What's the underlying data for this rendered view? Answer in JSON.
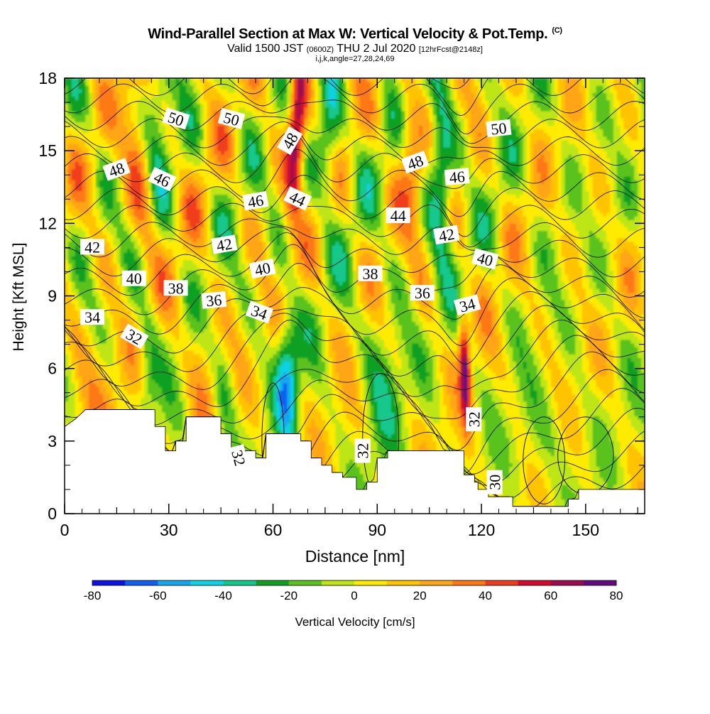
{
  "title": "Wind-Parallel Section at Max W: Vertical Velocity & Pot.Temp.",
  "title_mark": "(C)",
  "subtitle": {
    "prefix": "Valid 1500 JST",
    "small1": "(0600Z)",
    "middle": "THU 2 Jul 2020",
    "small2": "[12hrFcst@2148z]"
  },
  "subtitle2": "i,j,k,angle=27,28,24,69",
  "chart_data": {
    "type": "heatmap",
    "xlabel": "Distance [nm]",
    "ylabel": "Height [Kft MSL]",
    "xlim": [
      0,
      167
    ],
    "ylim": [
      0,
      18
    ],
    "x_ticks": [
      "0",
      "30",
      "60",
      "90",
      "120",
      "150"
    ],
    "y_ticks": [
      "0",
      "3",
      "6",
      "9",
      "12",
      "15",
      "18"
    ],
    "colorbar": {
      "label": "Vertical Velocity [cm/s]",
      "tick_labels": [
        "-80",
        "-60",
        "-40",
        "-20",
        "0",
        "20",
        "40",
        "60",
        "80"
      ],
      "range": [
        -80,
        80
      ],
      "step": 10,
      "colors": [
        "#1010e6",
        "#1060f0",
        "#14a6f0",
        "#10d2e6",
        "#14c88c",
        "#10a020",
        "#5ac21e",
        "#bee614",
        "#ffeb00",
        "#ffc300",
        "#ffa519",
        "#ff7814",
        "#f03c1e",
        "#d20a2d",
        "#a00a50",
        "#640a82"
      ]
    },
    "terrain_kft": [
      [
        0,
        3.6
      ],
      [
        3,
        3.9
      ],
      [
        6,
        4.3
      ],
      [
        26,
        4.3
      ],
      [
        26,
        3.6
      ],
      [
        29,
        3.6
      ],
      [
        29,
        2.6
      ],
      [
        32,
        2.6
      ],
      [
        32,
        3.0
      ],
      [
        35,
        3.0
      ],
      [
        35,
        4.0
      ],
      [
        45,
        4.0
      ],
      [
        45,
        3.3
      ],
      [
        48,
        3.3
      ],
      [
        48,
        2.3
      ],
      [
        52,
        2.3
      ],
      [
        52,
        2.6
      ],
      [
        55,
        2.6
      ],
      [
        55,
        2.3
      ],
      [
        58,
        2.3
      ],
      [
        58,
        3.3
      ],
      [
        68,
        3.3
      ],
      [
        68,
        3.0
      ],
      [
        71,
        3.0
      ],
      [
        71,
        2.3
      ],
      [
        74,
        2.3
      ],
      [
        74,
        2.0
      ],
      [
        77,
        2.0
      ],
      [
        77,
        1.7
      ],
      [
        80,
        1.7
      ],
      [
        80,
        1.5
      ],
      [
        84,
        1.5
      ],
      [
        84,
        1.0
      ],
      [
        87,
        1.0
      ],
      [
        87,
        1.3
      ],
      [
        90,
        1.3
      ],
      [
        90,
        2.3
      ],
      [
        93,
        2.3
      ],
      [
        93,
        2.6
      ],
      [
        115,
        2.6
      ],
      [
        115,
        1.6
      ],
      [
        118,
        1.6
      ],
      [
        118,
        1.3
      ],
      [
        119,
        1.3
      ],
      [
        119,
        1.0
      ],
      [
        122,
        1.0
      ],
      [
        122,
        0.7
      ],
      [
        129,
        0.7
      ],
      [
        129,
        0.3
      ],
      [
        145,
        0.3
      ],
      [
        145,
        0.6
      ],
      [
        148,
        0.6
      ],
      [
        148,
        1.0
      ],
      [
        167,
        1.0
      ]
    ],
    "theta_contours_K": [
      30,
      32,
      34,
      36,
      38,
      40,
      42,
      44,
      46,
      48,
      50
    ],
    "contour_labels": [
      {
        "text": "50",
        "x": 32,
        "y": 16.3,
        "angle": 18
      },
      {
        "text": "50",
        "x": 48,
        "y": 16.3,
        "angle": 15
      },
      {
        "text": "48",
        "x": 65,
        "y": 15.4,
        "angle": -60
      },
      {
        "text": "50",
        "x": 125,
        "y": 15.9,
        "angle": -6
      },
      {
        "text": "48",
        "x": 15,
        "y": 14.2,
        "angle": -20
      },
      {
        "text": "46",
        "x": 28,
        "y": 13.8,
        "angle": 25
      },
      {
        "text": "48",
        "x": 101,
        "y": 14.5,
        "angle": -20
      },
      {
        "text": "46",
        "x": 113,
        "y": 13.9,
        "angle": -5
      },
      {
        "text": "46",
        "x": 55,
        "y": 12.9,
        "angle": -10
      },
      {
        "text": "44",
        "x": 67,
        "y": 13.0,
        "angle": 25
      },
      {
        "text": "44",
        "x": 96,
        "y": 12.3,
        "angle": 0
      },
      {
        "text": "42",
        "x": 110,
        "y": 11.5,
        "angle": -10
      },
      {
        "text": "42",
        "x": 8,
        "y": 11.0,
        "angle": 0
      },
      {
        "text": "42",
        "x": 46,
        "y": 11.1,
        "angle": -10
      },
      {
        "text": "40",
        "x": 121,
        "y": 10.5,
        "angle": 15
      },
      {
        "text": "40",
        "x": 20,
        "y": 9.7,
        "angle": 0
      },
      {
        "text": "40",
        "x": 57,
        "y": 10.1,
        "angle": -12
      },
      {
        "text": "38",
        "x": 32,
        "y": 9.3,
        "angle": 0
      },
      {
        "text": "38",
        "x": 88,
        "y": 9.9,
        "angle": 0
      },
      {
        "text": "36",
        "x": 43,
        "y": 8.8,
        "angle": -5
      },
      {
        "text": "36",
        "x": 103,
        "y": 9.1,
        "angle": 0
      },
      {
        "text": "34",
        "x": 8,
        "y": 8.1,
        "angle": 0
      },
      {
        "text": "34",
        "x": 56,
        "y": 8.3,
        "angle": 20
      },
      {
        "text": "34",
        "x": 116,
        "y": 8.6,
        "angle": -15
      },
      {
        "text": "32",
        "x": 20,
        "y": 7.3,
        "angle": 30
      },
      {
        "text": "32",
        "x": 118,
        "y": 3.9,
        "angle": -90
      },
      {
        "text": "32",
        "x": 86,
        "y": 2.6,
        "angle": -90
      },
      {
        "text": "32",
        "x": 50,
        "y": 2.3,
        "angle": 75
      },
      {
        "text": "30",
        "x": 124,
        "y": 1.3,
        "angle": -90
      }
    ],
    "updraft_cores": [
      {
        "x": 66,
        "z_range": [
          13,
          18
        ],
        "w_cms": 70
      },
      {
        "x": 115.5,
        "z_range": [
          3.2,
          8.2
        ],
        "w_cms": 60
      },
      {
        "x": 19,
        "z_range": [
          11,
          18
        ],
        "w_cms": 35
      },
      {
        "x": 100,
        "z_range": [
          11,
          17
        ],
        "w_cms": 30
      }
    ],
    "downdraft_cores": [
      {
        "x": 64,
        "z_range": [
          3.5,
          7.5
        ],
        "w_cms": -45
      },
      {
        "x": 76,
        "z_range": [
          14,
          18
        ],
        "w_cms": -35
      },
      {
        "x": 108,
        "z_range": [
          10,
          17
        ],
        "w_cms": -40
      },
      {
        "x": 26,
        "z_range": [
          14,
          18
        ],
        "w_cms": -28
      }
    ]
  }
}
